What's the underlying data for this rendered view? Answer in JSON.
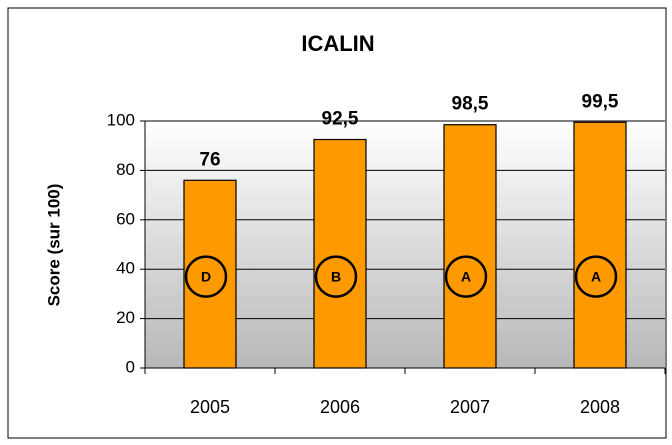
{
  "chart_data": {
    "type": "bar",
    "title": "ICALIN",
    "y_label": "Score (sur 100)",
    "categories": [
      "2005",
      "2006",
      "2007",
      "2008"
    ],
    "values": [
      76,
      92.5,
      98.5,
      99.5
    ],
    "value_labels": [
      "76",
      "92,5",
      "98,5",
      "99,5"
    ],
    "grades": [
      "D",
      "B",
      "A",
      "A"
    ],
    "color": "#ff9900",
    "ylim": [
      0,
      100
    ],
    "yticks": [
      0,
      20,
      40,
      60,
      80,
      100
    ],
    "grid": true
  }
}
